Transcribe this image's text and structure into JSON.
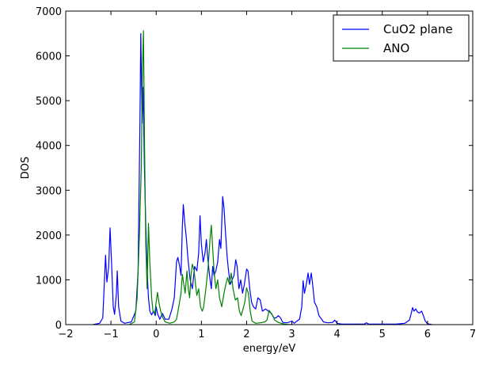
{
  "chart_data": {
    "type": "line",
    "title": "",
    "xlabel": "energy/eV",
    "ylabel": "DOS",
    "xlim": [
      -2,
      7
    ],
    "ylim": [
      0,
      7000
    ],
    "x_ticks": [
      -2,
      -1,
      0,
      1,
      2,
      3,
      4,
      5,
      6,
      7
    ],
    "y_ticks": [
      0,
      1000,
      2000,
      3000,
      4000,
      5000,
      6000,
      7000
    ],
    "grid": false,
    "legend_position": "top-right",
    "series": [
      {
        "name": "CuO2 plane",
        "color": "#0000ff",
        "points": [
          [
            -1.4,
            0
          ],
          [
            -1.25,
            30
          ],
          [
            -1.18,
            150
          ],
          [
            -1.12,
            1550
          ],
          [
            -1.09,
            950
          ],
          [
            -1.05,
            1300
          ],
          [
            -1.02,
            2160
          ],
          [
            -0.98,
            1200
          ],
          [
            -0.95,
            400
          ],
          [
            -0.92,
            230
          ],
          [
            -0.88,
            700
          ],
          [
            -0.86,
            1200
          ],
          [
            -0.83,
            400
          ],
          [
            -0.78,
            80
          ],
          [
            -0.7,
            30
          ],
          [
            -0.55,
            60
          ],
          [
            -0.45,
            300
          ],
          [
            -0.4,
            1200
          ],
          [
            -0.36,
            4500
          ],
          [
            -0.34,
            6500
          ],
          [
            -0.31,
            4500
          ],
          [
            -0.29,
            5300
          ],
          [
            -0.26,
            3500
          ],
          [
            -0.23,
            2200
          ],
          [
            -0.2,
            1200
          ],
          [
            -0.17,
            600
          ],
          [
            -0.14,
            300
          ],
          [
            -0.1,
            220
          ],
          [
            -0.06,
            300
          ],
          [
            -0.02,
            200
          ],
          [
            0.0,
            400
          ],
          [
            0.03,
            250
          ],
          [
            0.08,
            120
          ],
          [
            0.14,
            250
          ],
          [
            0.2,
            120
          ],
          [
            0.28,
            120
          ],
          [
            0.35,
            350
          ],
          [
            0.4,
            600
          ],
          [
            0.45,
            1400
          ],
          [
            0.48,
            1500
          ],
          [
            0.52,
            1300
          ],
          [
            0.55,
            1100
          ],
          [
            0.58,
            2200
          ],
          [
            0.6,
            2680
          ],
          [
            0.63,
            2300
          ],
          [
            0.67,
            1900
          ],
          [
            0.7,
            1500
          ],
          [
            0.75,
            1000
          ],
          [
            0.8,
            800
          ],
          [
            0.85,
            1300
          ],
          [
            0.9,
            1200
          ],
          [
            0.94,
            1600
          ],
          [
            0.97,
            2430
          ],
          [
            1.0,
            1800
          ],
          [
            1.04,
            1400
          ],
          [
            1.08,
            1600
          ],
          [
            1.11,
            1900
          ],
          [
            1.14,
            1500
          ],
          [
            1.18,
            1100
          ],
          [
            1.22,
            800
          ],
          [
            1.25,
            1300
          ],
          [
            1.28,
            1100
          ],
          [
            1.32,
            1200
          ],
          [
            1.36,
            1400
          ],
          [
            1.4,
            1900
          ],
          [
            1.43,
            1700
          ],
          [
            1.47,
            2860
          ],
          [
            1.5,
            2600
          ],
          [
            1.53,
            2100
          ],
          [
            1.57,
            1500
          ],
          [
            1.6,
            1200
          ],
          [
            1.64,
            900
          ],
          [
            1.68,
            1000
          ],
          [
            1.72,
            1100
          ],
          [
            1.76,
            1450
          ],
          [
            1.79,
            1300
          ],
          [
            1.83,
            800
          ],
          [
            1.87,
            1000
          ],
          [
            1.91,
            700
          ],
          [
            1.95,
            900
          ],
          [
            2.0,
            1240
          ],
          [
            2.03,
            1200
          ],
          [
            2.07,
            800
          ],
          [
            2.11,
            500
          ],
          [
            2.15,
            400
          ],
          [
            2.2,
            350
          ],
          [
            2.25,
            600
          ],
          [
            2.3,
            550
          ],
          [
            2.35,
            300
          ],
          [
            2.42,
            350
          ],
          [
            2.48,
            300
          ],
          [
            2.55,
            250
          ],
          [
            2.6,
            150
          ],
          [
            2.65,
            150
          ],
          [
            2.7,
            200
          ],
          [
            2.75,
            150
          ],
          [
            2.8,
            50
          ],
          [
            2.9,
            40
          ],
          [
            3.0,
            80
          ],
          [
            3.05,
            30
          ],
          [
            3.1,
            70
          ],
          [
            3.17,
            120
          ],
          [
            3.22,
            400
          ],
          [
            3.25,
            980
          ],
          [
            3.28,
            700
          ],
          [
            3.32,
            900
          ],
          [
            3.36,
            1150
          ],
          [
            3.39,
            900
          ],
          [
            3.43,
            1150
          ],
          [
            3.46,
            900
          ],
          [
            3.5,
            500
          ],
          [
            3.55,
            400
          ],
          [
            3.6,
            200
          ],
          [
            3.65,
            130
          ],
          [
            3.7,
            60
          ],
          [
            3.8,
            40
          ],
          [
            3.9,
            50
          ],
          [
            3.95,
            100
          ],
          [
            4.0,
            30
          ],
          [
            4.1,
            10
          ],
          [
            4.6,
            10
          ],
          [
            4.65,
            40
          ],
          [
            4.7,
            10
          ],
          [
            5.3,
            10
          ],
          [
            5.4,
            20
          ],
          [
            5.5,
            30
          ],
          [
            5.6,
            100
          ],
          [
            5.64,
            250
          ],
          [
            5.67,
            380
          ],
          [
            5.7,
            300
          ],
          [
            5.74,
            350
          ],
          [
            5.78,
            280
          ],
          [
            5.82,
            260
          ],
          [
            5.87,
            300
          ],
          [
            5.91,
            200
          ],
          [
            5.95,
            80
          ],
          [
            6.0,
            20
          ],
          [
            6.1,
            0
          ]
        ]
      },
      {
        "name": "ANO",
        "color": "#008000",
        "points": [
          [
            -0.6,
            0
          ],
          [
            -0.48,
            60
          ],
          [
            -0.42,
            600
          ],
          [
            -0.37,
            2000
          ],
          [
            -0.33,
            3500
          ],
          [
            -0.3,
            5800
          ],
          [
            -0.28,
            6560
          ],
          [
            -0.26,
            4200
          ],
          [
            -0.23,
            1800
          ],
          [
            -0.2,
            800
          ],
          [
            -0.17,
            2260
          ],
          [
            -0.14,
            1400
          ],
          [
            -0.1,
            600
          ],
          [
            -0.07,
            300
          ],
          [
            -0.03,
            250
          ],
          [
            0.0,
            500
          ],
          [
            0.03,
            720
          ],
          [
            0.06,
            500
          ],
          [
            0.1,
            300
          ],
          [
            0.15,
            150
          ],
          [
            0.2,
            60
          ],
          [
            0.3,
            30
          ],
          [
            0.4,
            60
          ],
          [
            0.45,
            120
          ],
          [
            0.5,
            400
          ],
          [
            0.55,
            700
          ],
          [
            0.58,
            1120
          ],
          [
            0.61,
            900
          ],
          [
            0.64,
            700
          ],
          [
            0.68,
            1200
          ],
          [
            0.71,
            800
          ],
          [
            0.74,
            600
          ],
          [
            0.77,
            1100
          ],
          [
            0.8,
            1350
          ],
          [
            0.84,
            1200
          ],
          [
            0.87,
            900
          ],
          [
            0.9,
            650
          ],
          [
            0.94,
            800
          ],
          [
            0.98,
            400
          ],
          [
            1.02,
            300
          ],
          [
            1.05,
            400
          ],
          [
            1.1,
            800
          ],
          [
            1.15,
            1300
          ],
          [
            1.19,
            1900
          ],
          [
            1.22,
            2220
          ],
          [
            1.25,
            1700
          ],
          [
            1.28,
            1200
          ],
          [
            1.32,
            800
          ],
          [
            1.36,
            1000
          ],
          [
            1.4,
            600
          ],
          [
            1.45,
            400
          ],
          [
            1.5,
            700
          ],
          [
            1.54,
            900
          ],
          [
            1.58,
            1050
          ],
          [
            1.62,
            900
          ],
          [
            1.66,
            1150
          ],
          [
            1.7,
            800
          ],
          [
            1.75,
            550
          ],
          [
            1.8,
            600
          ],
          [
            1.84,
            300
          ],
          [
            1.88,
            200
          ],
          [
            1.92,
            350
          ],
          [
            1.96,
            500
          ],
          [
            2.0,
            820
          ],
          [
            2.04,
            700
          ],
          [
            2.08,
            300
          ],
          [
            2.12,
            80
          ],
          [
            2.2,
            30
          ],
          [
            2.3,
            40
          ],
          [
            2.4,
            60
          ],
          [
            2.45,
            100
          ],
          [
            2.5,
            320
          ],
          [
            2.54,
            250
          ],
          [
            2.58,
            200
          ],
          [
            2.62,
            100
          ],
          [
            2.7,
            50
          ],
          [
            2.8,
            20
          ],
          [
            2.9,
            5
          ],
          [
            3.0,
            0
          ]
        ]
      }
    ]
  }
}
